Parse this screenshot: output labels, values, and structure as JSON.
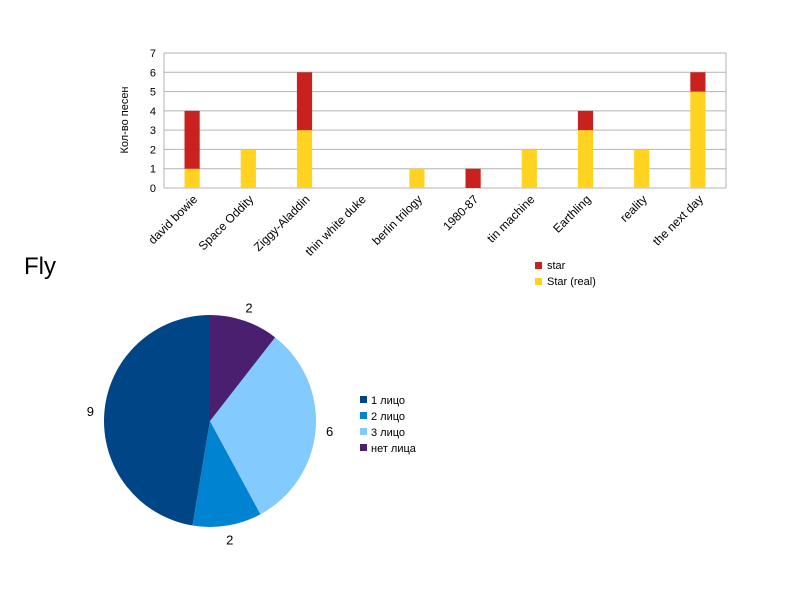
{
  "section_title": "Fly",
  "chart_data": [
    {
      "type": "bar",
      "stacked": true,
      "title": "",
      "xlabel": "",
      "ylabel": "Кол-во песен",
      "ylim": [
        0,
        7
      ],
      "yticks": [
        0,
        1,
        2,
        3,
        4,
        5,
        6,
        7
      ],
      "grid": true,
      "legend_position": "bottom-right",
      "categories": [
        "david bowie",
        "Space Oddity",
        "Ziggy-Aladdin",
        "thin white duke",
        "berlin trilogy",
        "1980-87",
        "tin machine",
        "Earthling",
        "reality",
        "the next day"
      ],
      "series": [
        {
          "name": "Star (real)",
          "color": "#ffd320",
          "values": [
            1,
            2,
            3,
            0,
            1,
            0,
            2,
            3,
            2,
            5
          ]
        },
        {
          "name": "star",
          "color": "#c9211e",
          "values": [
            3,
            0,
            3,
            0,
            0,
            1,
            0,
            1,
            0,
            1
          ]
        }
      ],
      "legend": [
        "star",
        "Star (real)"
      ]
    },
    {
      "type": "pie",
      "title": "",
      "legend_position": "right",
      "slices": [
        {
          "label": "1 лицо",
          "value": 9,
          "color": "#004586"
        },
        {
          "label": "2 лицо",
          "value": 2,
          "color": "#0084d1"
        },
        {
          "label": "3 лицо",
          "value": 6,
          "color": "#83caff"
        },
        {
          "label": "нет лица",
          "value": 2,
          "color": "#4b1f6f"
        }
      ]
    }
  ]
}
